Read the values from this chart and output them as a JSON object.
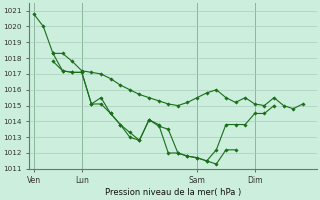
{
  "background_color": "#cceedd",
  "grid_color": "#aaccbb",
  "line_color": "#1a6e1a",
  "marker_color": "#1a6e1a",
  "xlabel": "Pression niveau de la mer( hPa )",
  "ylim": [
    1011,
    1021.5
  ],
  "yticks": [
    1011,
    1012,
    1013,
    1014,
    1015,
    1016,
    1017,
    1018,
    1019,
    1020,
    1021
  ],
  "xtick_labels": [
    "Ven",
    "Lun",
    "Sam",
    "Dim"
  ],
  "xtick_positions": [
    0.5,
    5.5,
    17.5,
    23.5
  ],
  "xlim": [
    0,
    30
  ],
  "series": [
    {
      "x": [
        0.5,
        1.5,
        2.5,
        3.5,
        4.5,
        5.5,
        6.5,
        7.5,
        8.5,
        9.5,
        10.5,
        11.5,
        12.5,
        13.5,
        14.5,
        15.5,
        16.5,
        17.5,
        18.5,
        19.5,
        20.5,
        21.5,
        22.5,
        23.5,
        24.5,
        25.5,
        26.5,
        27.5,
        28.5
      ],
      "y": [
        1020.8,
        1020.0,
        1018.3,
        1018.3,
        1017.8,
        1017.2,
        1017.1,
        1017.0,
        1016.7,
        1016.3,
        1016.0,
        1015.7,
        1015.5,
        1015.3,
        1015.1,
        1015.0,
        1015.2,
        1015.5,
        1015.8,
        1016.0,
        1015.5,
        1015.2,
        1015.5,
        1015.1,
        1015.0,
        1015.5,
        1015.0,
        1014.8,
        1015.1
      ]
    },
    {
      "x": [
        2.5,
        3.5,
        4.5,
        5.5,
        6.5,
        7.5,
        8.5,
        9.5,
        10.5,
        11.5,
        12.5,
        13.5,
        14.5,
        15.5,
        16.5,
        17.5,
        18.5,
        19.5,
        20.5,
        21.5,
        22.5,
        23.5,
        24.5,
        25.5
      ],
      "y": [
        1018.3,
        1017.2,
        1017.1,
        1017.1,
        1015.1,
        1015.1,
        1014.5,
        1013.8,
        1013.0,
        1012.8,
        1014.1,
        1013.7,
        1013.5,
        1012.0,
        1011.8,
        1011.7,
        1011.5,
        1012.2,
        1013.8,
        1013.8,
        1013.8,
        1014.5,
        1014.5,
        1015.0
      ]
    },
    {
      "x": [
        2.5,
        3.5,
        4.5,
        5.5,
        6.5,
        7.5,
        8.5,
        9.5,
        10.5,
        11.5,
        12.5,
        13.5,
        14.5,
        15.5,
        16.5,
        17.5,
        18.5,
        19.5,
        20.5,
        21.5
      ],
      "y": [
        1017.8,
        1017.2,
        1017.1,
        1017.1,
        1015.1,
        1015.5,
        1014.5,
        1013.8,
        1013.3,
        1012.8,
        1014.1,
        1013.8,
        1012.0,
        1012.0,
        1011.8,
        1011.7,
        1011.5,
        1011.3,
        1012.2,
        1012.2
      ]
    }
  ]
}
